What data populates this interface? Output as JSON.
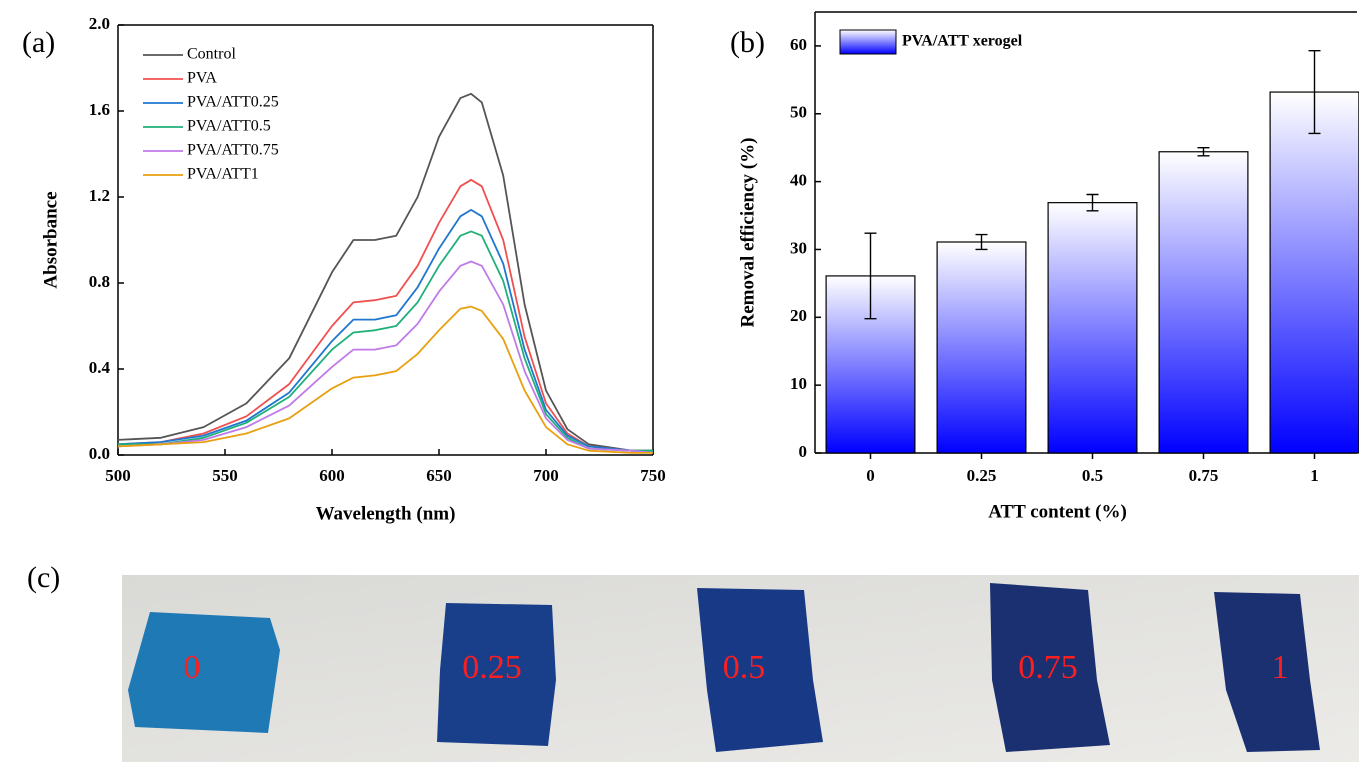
{
  "chart_data": [
    {
      "type": "line",
      "panel_label": "(a)",
      "xlabel": "Wavelength (nm)",
      "ylabel": "Absorbance",
      "x": [
        500,
        520,
        540,
        560,
        580,
        600,
        610,
        620,
        630,
        640,
        650,
        660,
        665,
        670,
        680,
        690,
        700,
        710,
        720,
        740,
        750
      ],
      "series": [
        {
          "name": "Control",
          "color": "#555555",
          "values": [
            0.07,
            0.08,
            0.13,
            0.24,
            0.45,
            0.85,
            1.0,
            1.0,
            1.02,
            1.2,
            1.48,
            1.66,
            1.68,
            1.64,
            1.3,
            0.7,
            0.3,
            0.12,
            0.05,
            0.02,
            0.02
          ]
        },
        {
          "name": "PVA",
          "color": "#f05050",
          "values": [
            0.05,
            0.06,
            0.1,
            0.18,
            0.33,
            0.6,
            0.71,
            0.72,
            0.74,
            0.88,
            1.08,
            1.25,
            1.28,
            1.25,
            1.0,
            0.55,
            0.24,
            0.1,
            0.04,
            0.02,
            0.02
          ]
        },
        {
          "name": "PVA/ATT0.25",
          "color": "#1f77d0",
          "values": [
            0.05,
            0.06,
            0.09,
            0.16,
            0.29,
            0.53,
            0.63,
            0.63,
            0.65,
            0.78,
            0.96,
            1.11,
            1.14,
            1.11,
            0.89,
            0.49,
            0.21,
            0.09,
            0.04,
            0.02,
            0.02
          ]
        },
        {
          "name": "PVA/ATT0.5",
          "color": "#20b07a",
          "values": [
            0.05,
            0.05,
            0.08,
            0.15,
            0.27,
            0.49,
            0.57,
            0.58,
            0.6,
            0.71,
            0.88,
            1.02,
            1.04,
            1.02,
            0.81,
            0.45,
            0.19,
            0.08,
            0.03,
            0.02,
            0.02
          ]
        },
        {
          "name": "PVA/ATT0.75",
          "color": "#c07ae8",
          "values": [
            0.04,
            0.05,
            0.07,
            0.13,
            0.23,
            0.41,
            0.49,
            0.49,
            0.51,
            0.61,
            0.76,
            0.88,
            0.9,
            0.88,
            0.7,
            0.39,
            0.17,
            0.07,
            0.03,
            0.02,
            0.01
          ]
        },
        {
          "name": "PVA/ATT1",
          "color": "#e8a010",
          "values": [
            0.04,
            0.05,
            0.06,
            0.1,
            0.17,
            0.31,
            0.36,
            0.37,
            0.39,
            0.47,
            0.58,
            0.68,
            0.69,
            0.67,
            0.54,
            0.3,
            0.13,
            0.05,
            0.02,
            0.01,
            0.01
          ]
        }
      ],
      "xlim": [
        500,
        750
      ],
      "xticks": [
        500,
        550,
        600,
        650,
        700,
        750
      ],
      "ylim": [
        0,
        2
      ],
      "yticks": [
        {
          "value": 0,
          "label": "0.0"
        },
        {
          "value": 0.4,
          "label": "0.4"
        },
        {
          "value": 0.8,
          "label": "0.8"
        },
        {
          "value": 1.2,
          "label": "1.2"
        },
        {
          "value": 1.6,
          "label": "1.6"
        },
        {
          "value": 2,
          "label": "2.0"
        }
      ],
      "legend": "upper left"
    },
    {
      "type": "bar",
      "panel_label": "(b)",
      "xlabel": "ATT content (%)",
      "ylabel": "Removal efficiency (%)",
      "categories": [
        "0",
        "0.25",
        "0.5",
        "0.75",
        "1"
      ],
      "series": [
        {
          "name": "PVA/ATT xerogel",
          "color": "#0000ff",
          "values": [
            26.1,
            31.1,
            36.9,
            44.4,
            53.2
          ],
          "errors": [
            6.3,
            1.1,
            1.2,
            0.6,
            6.1
          ]
        }
      ],
      "ylim": [
        0,
        65
      ],
      "yticks": [
        0,
        10,
        20,
        30,
        40,
        50,
        60
      ],
      "legend": "upper left"
    }
  ],
  "photo": {
    "panel_label": "(c)",
    "labels": [
      "0",
      "0.25",
      "0.5",
      "0.75",
      "1"
    ]
  }
}
